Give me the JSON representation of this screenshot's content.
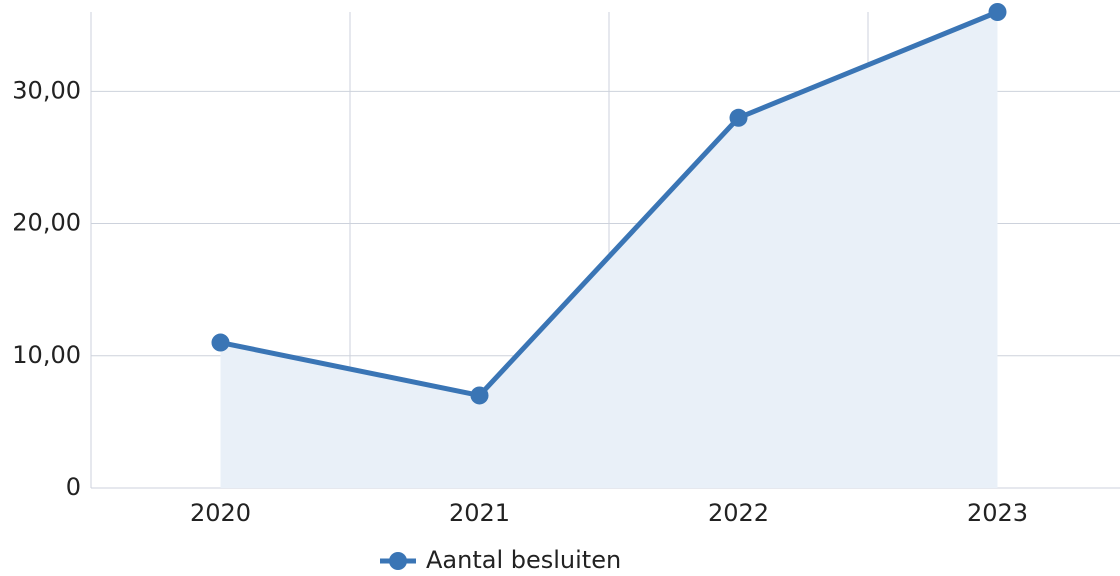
{
  "chart_data": {
    "type": "line",
    "categories": [
      "2020",
      "2021",
      "2022",
      "2023"
    ],
    "series": [
      {
        "name": "Aantal besluiten",
        "color": "#3a75b5",
        "values": [
          11,
          7,
          28,
          36
        ]
      }
    ],
    "ylim": [
      0,
      36
    ],
    "yticks": [
      0,
      {
        "value": 10,
        "label": "10,00"
      },
      {
        "value": 20,
        "label": "20,00"
      },
      {
        "value": 30,
        "label": "30,00"
      }
    ],
    "grid": true,
    "area": true,
    "legend": "bottom"
  }
}
